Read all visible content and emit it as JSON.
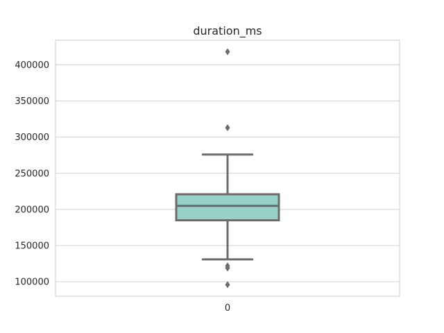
{
  "chart_data": {
    "type": "box",
    "title": "duration_ms",
    "xlabel": "",
    "ylabel": "",
    "categories": [
      "0"
    ],
    "ylim": [
      80000,
      434000
    ],
    "yticks": [
      100000,
      150000,
      200000,
      250000,
      300000,
      350000,
      400000
    ],
    "ytick_labels": [
      "100000",
      "150000",
      "200000",
      "250000",
      "300000",
      "350000",
      "400000"
    ],
    "grid": true,
    "box": {
      "whisker_low": 131000,
      "q1": 185000,
      "median": 205000,
      "q3": 221000,
      "whisker_high": 276000,
      "outliers": [
        418000,
        313000,
        122000,
        119000,
        96000
      ]
    },
    "colors": {
      "box_fill": "#97d0c5",
      "line": "#6b6b6b",
      "grid": "#d0d0d0",
      "frame": "#cccccc"
    }
  }
}
